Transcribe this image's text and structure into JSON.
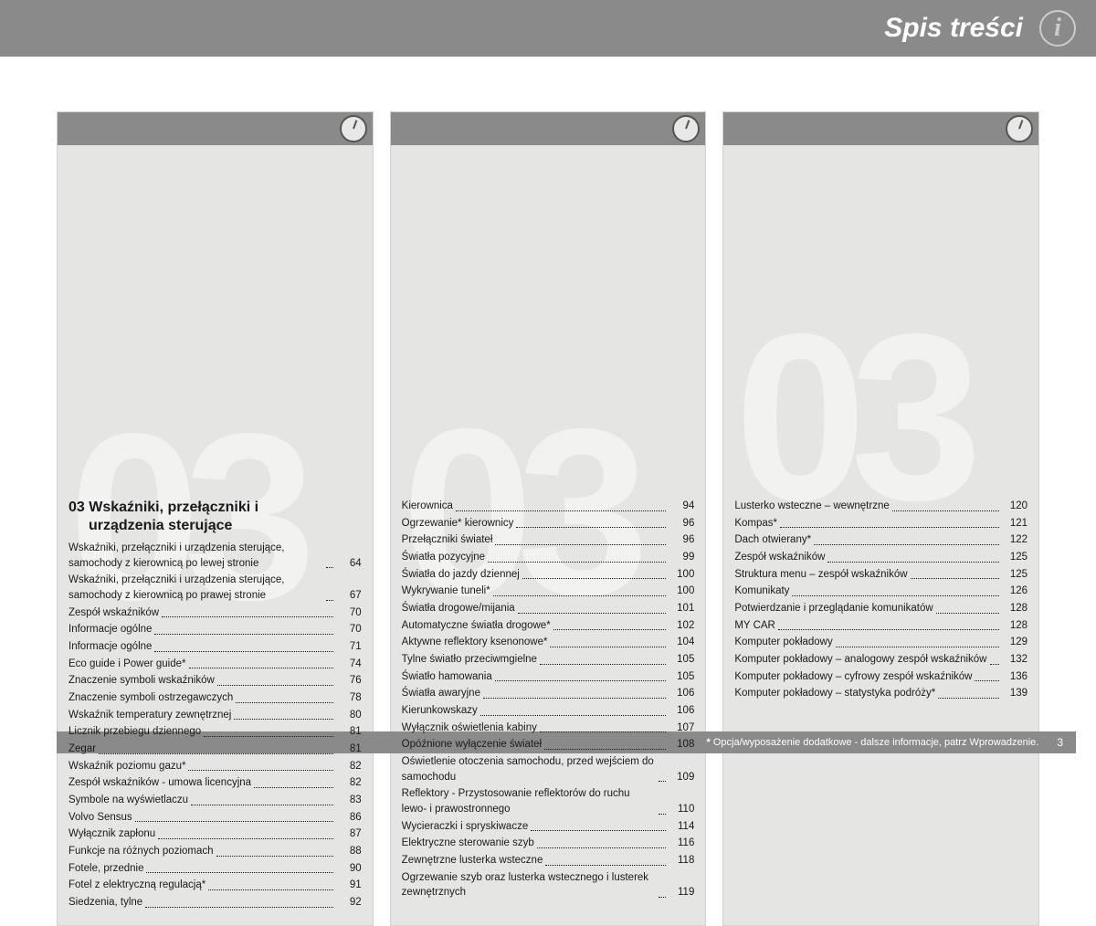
{
  "header": {
    "title": "Spis treści"
  },
  "bg_number": "03",
  "section": {
    "number": "03",
    "title_line1": "Wskaźniki, przełączniki i",
    "title_line2": "urządzenia sterujące"
  },
  "columns": [
    {
      "entries": [
        {
          "label": "Wskaźniki, przełączniki i urządzenia sterujące, samochody z kierownicą po lewej stronie",
          "page": 64
        },
        {
          "label": "Wskaźniki, przełączniki i urządzenia sterujące, samochody z kierownicą po prawej stronie",
          "page": 67
        },
        {
          "label": "Zespół wskaźników",
          "page": 70
        },
        {
          "label": "Informacje ogólne",
          "page": 70
        },
        {
          "label": "Informacje ogólne",
          "page": 71
        },
        {
          "label": "Eco guide i Power guide*",
          "page": 74
        },
        {
          "label": "Znaczenie symboli wskaźników",
          "page": 76
        },
        {
          "label": "Znaczenie symboli ostrzegawczych",
          "page": 78
        },
        {
          "label": "Wskaźnik temperatury zewnętrznej",
          "page": 80
        },
        {
          "label": "Licznik przebiegu dziennego",
          "page": 81
        },
        {
          "label": "Zegar",
          "page": 81
        },
        {
          "label": "Wskaźnik poziomu gazu*",
          "page": 82
        },
        {
          "label": "Zespół wskaźników - umowa licencyjna",
          "page": 82
        },
        {
          "label": "Symbole na wyświetlaczu",
          "page": 83
        },
        {
          "label": "Volvo Sensus",
          "page": 86
        },
        {
          "label": "Wyłącznik zapłonu",
          "page": 87
        },
        {
          "label": "Funkcje na różnych poziomach",
          "page": 88
        },
        {
          "label": "Fotele, przednie",
          "page": 90
        },
        {
          "label": "Fotel z elektryczną regulacją*",
          "page": 91
        },
        {
          "label": "Siedzenia, tylne",
          "page": 92
        }
      ]
    },
    {
      "entries": [
        {
          "label": "Kierownica",
          "page": 94
        },
        {
          "label": "Ogrzewanie* kierownicy",
          "page": 96
        },
        {
          "label": "Przełączniki świateł",
          "page": 96
        },
        {
          "label": "Światła pozycyjne",
          "page": 99
        },
        {
          "label": "Światła do jazdy dziennej",
          "page": 100
        },
        {
          "label": "Wykrywanie tuneli*",
          "page": 100
        },
        {
          "label": "Światła drogowe/mijania",
          "page": 101
        },
        {
          "label": "Automatyczne światła drogowe*",
          "page": 102
        },
        {
          "label": "Aktywne reflektory ksenonowe*",
          "page": 104
        },
        {
          "label": "Tylne światło przeciwmgielne",
          "page": 105
        },
        {
          "label": "Światło hamowania",
          "page": 105
        },
        {
          "label": "Światła awaryjne",
          "page": 106
        },
        {
          "label": "Kierunkowskazy",
          "page": 106
        },
        {
          "label": "Wyłącznik oświetlenia kabiny",
          "page": 107
        },
        {
          "label": "Opóźnione wyłączenie świateł",
          "page": 108
        },
        {
          "label": "Oświetlenie otoczenia samochodu, przed wejściem do samochodu",
          "page": 109
        },
        {
          "label": "Reflektory - Przystosowanie reflektorów do ruchu lewo- i prawostronnego",
          "page": 110
        },
        {
          "label": "Wycieraczki i spryskiwacze",
          "page": 114
        },
        {
          "label": "Elektryczne sterowanie szyb",
          "page": 116
        },
        {
          "label": "Zewnętrzne lusterka wsteczne",
          "page": 118
        },
        {
          "label": "Ogrzewanie szyb oraz lusterka wstecznego i lusterek zewnętrznych",
          "page": 119
        }
      ]
    },
    {
      "entries": [
        {
          "label": "Lusterko wsteczne – wewnętrzne",
          "page": 120
        },
        {
          "label": "Kompas*",
          "page": 121
        },
        {
          "label": "Dach otwierany*",
          "page": 122
        },
        {
          "label": "Zespół wskaźników",
          "page": 125
        },
        {
          "label": "Struktura menu – zespół wskaźników",
          "page": 125
        },
        {
          "label": "Komunikaty",
          "page": 126
        },
        {
          "label": "Potwierdzanie i przeglądanie komunikatów",
          "page": 128
        },
        {
          "label": "MY CAR",
          "page": 128
        },
        {
          "label": "Komputer pokładowy",
          "page": 129
        },
        {
          "label": "Komputer pokładowy – analogowy zespół wskaźników",
          "page": 132
        },
        {
          "label": "Komputer pokładowy – cyfrowy zespół wskaźników",
          "page": 136
        },
        {
          "label": "Komputer pokładowy – statystyka podróży*",
          "page": 139
        }
      ]
    }
  ],
  "footer": {
    "note": "Opcja/wyposażenie dodatkowe - dalsze informacje, patrz Wprowadzenie.",
    "star": "*",
    "page": "3"
  }
}
